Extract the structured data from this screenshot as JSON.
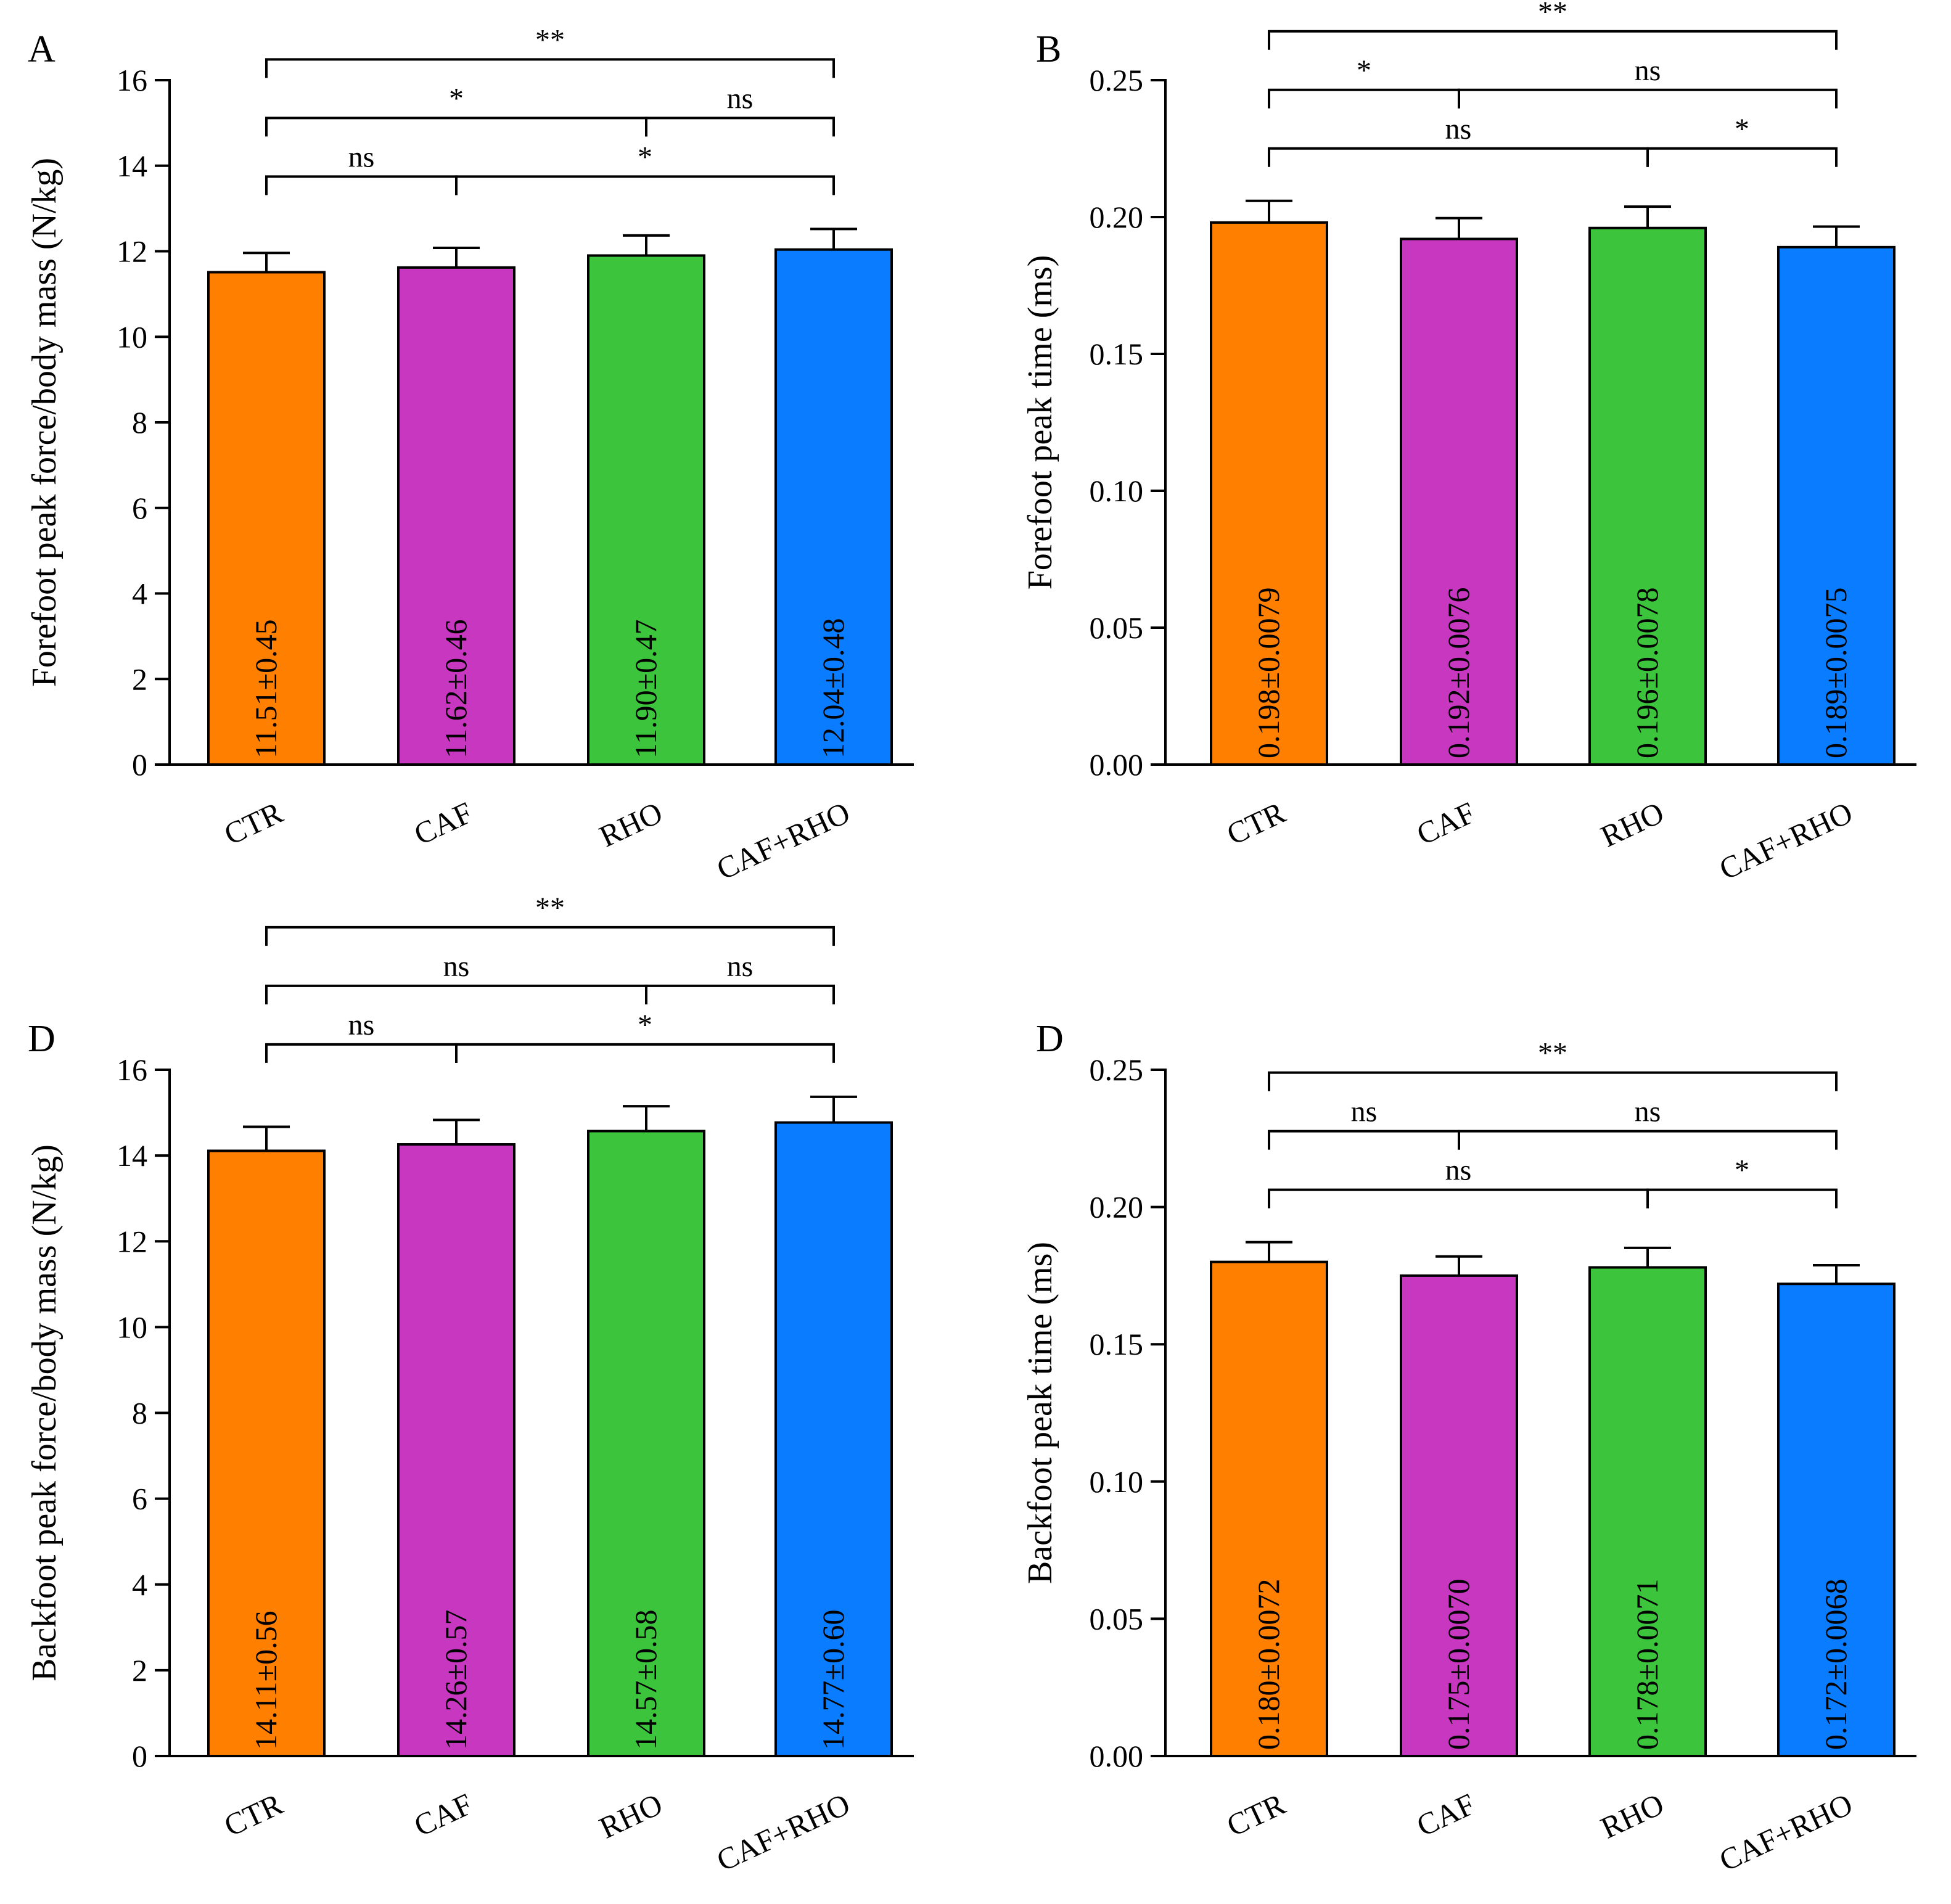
{
  "chart_data": [
    {
      "type": "bar",
      "panel_label": "A",
      "categories": [
        "CTR",
        "CAF",
        "RHO",
        "CAF+RHO"
      ],
      "values": [
        11.51,
        11.62,
        11.9,
        12.04
      ],
      "errors": [
        0.45,
        0.46,
        0.47,
        0.48
      ],
      "bar_labels": [
        "11.51±0.45",
        "11.62±0.46",
        "11.90±0.47",
        "12.04±0.48"
      ],
      "colors": [
        "#ff7f00",
        "#c837c0",
        "#3cc43c",
        "#0a7cff"
      ],
      "ylabel": "Forefoot peak force/body mass (N/kg)",
      "ylim": [
        0,
        16
      ],
      "yticks": [
        "0",
        "2",
        "4",
        "6",
        "8",
        "10",
        "12",
        "14",
        "16"
      ],
      "significance": [
        {
          "from": 0,
          "to": 1,
          "label": "ns",
          "level": 1
        },
        {
          "from": 1,
          "to": 3,
          "label": "*",
          "level": 1
        },
        {
          "from": 0,
          "to": 2,
          "label": "*",
          "level": 2
        },
        {
          "from": 2,
          "to": 3,
          "label": "ns",
          "level": 2
        },
        {
          "from": 0,
          "to": 3,
          "label": "**",
          "level": 3
        }
      ]
    },
    {
      "type": "bar",
      "panel_label": "B",
      "categories": [
        "CTR",
        "CAF",
        "RHO",
        "CAF+RHO"
      ],
      "values": [
        0.198,
        0.192,
        0.196,
        0.189
      ],
      "errors": [
        0.0079,
        0.0076,
        0.0078,
        0.0075
      ],
      "bar_labels": [
        "0.198±0.0079",
        "0.192±0.0076",
        "0.196±0.0078",
        "0.189±0.0075"
      ],
      "colors": [
        "#ff7f00",
        "#c837c0",
        "#3cc43c",
        "#0a7cff"
      ],
      "ylabel": "Forefoot peak time (ms)",
      "ylim": [
        0,
        0.25
      ],
      "yticks": [
        "0.00",
        "0.05",
        "0.10",
        "0.15",
        "0.20",
        "0.25"
      ],
      "significance": [
        {
          "from": 0,
          "to": 2,
          "label": "ns",
          "level": 1
        },
        {
          "from": 2,
          "to": 3,
          "label": "*",
          "level": 1
        },
        {
          "from": 0,
          "to": 1,
          "label": "*",
          "level": 2
        },
        {
          "from": 1,
          "to": 3,
          "label": "ns",
          "level": 2
        },
        {
          "from": 0,
          "to": 3,
          "label": "**",
          "level": 3
        }
      ]
    },
    {
      "type": "bar",
      "panel_label": "D",
      "categories": [
        "CTR",
        "CAF",
        "RHO",
        "CAF+RHO"
      ],
      "values": [
        14.11,
        14.26,
        14.57,
        14.77
      ],
      "errors": [
        0.56,
        0.57,
        0.58,
        0.6
      ],
      "bar_labels": [
        "14.11±0.56",
        "14.26±0.57",
        "14.57±0.58",
        "14.77±0.60"
      ],
      "colors": [
        "#ff7f00",
        "#c837c0",
        "#3cc43c",
        "#0a7cff"
      ],
      "ylabel": "Backfoot peak force/body mass (N/kg)",
      "ylim": [
        0,
        16
      ],
      "yticks": [
        "0",
        "2",
        "4",
        "6",
        "8",
        "10",
        "12",
        "14",
        "16"
      ],
      "significance": [
        {
          "from": 0,
          "to": 1,
          "label": "ns",
          "level": 1
        },
        {
          "from": 1,
          "to": 3,
          "label": "*",
          "level": 1
        },
        {
          "from": 0,
          "to": 2,
          "label": "ns",
          "level": 2
        },
        {
          "from": 2,
          "to": 3,
          "label": "ns",
          "level": 2
        },
        {
          "from": 0,
          "to": 3,
          "label": "**",
          "level": 3
        }
      ]
    },
    {
      "type": "bar",
      "panel_label": "D",
      "categories": [
        "CTR",
        "CAF",
        "RHO",
        "CAF+RHO"
      ],
      "values": [
        0.18,
        0.175,
        0.178,
        0.172
      ],
      "errors": [
        0.0072,
        0.007,
        0.0071,
        0.0068
      ],
      "bar_labels": [
        "0.180±0.0072",
        "0.175±0.0070",
        "0.178±0.0071",
        "0.172±0.0068"
      ],
      "colors": [
        "#ff7f00",
        "#c837c0",
        "#3cc43c",
        "#0a7cff"
      ],
      "ylabel": "Backfoot peak time (ms)",
      "ylim": [
        0,
        0.25
      ],
      "yticks": [
        "0.00",
        "0.05",
        "0.10",
        "0.15",
        "0.20",
        "0.25"
      ],
      "significance": [
        {
          "from": 0,
          "to": 2,
          "label": "ns",
          "level": 1
        },
        {
          "from": 2,
          "to": 3,
          "label": "*",
          "level": 1
        },
        {
          "from": 0,
          "to": 1,
          "label": "ns",
          "level": 2
        },
        {
          "from": 1,
          "to": 3,
          "label": "ns",
          "level": 2
        },
        {
          "from": 0,
          "to": 3,
          "label": "**",
          "level": 3
        }
      ]
    }
  ]
}
